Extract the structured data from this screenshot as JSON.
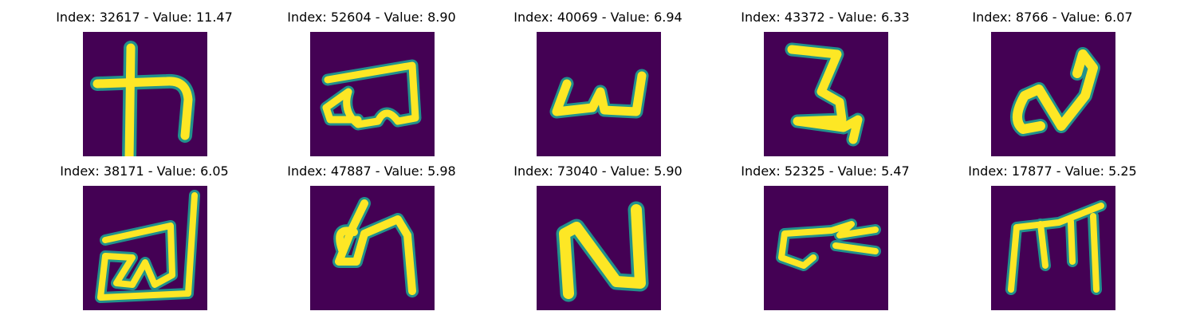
{
  "colors": {
    "background": "#440154",
    "mid": "#21918c",
    "stroke": "#fde725"
  },
  "panels": [
    {
      "title": "Index: 32617 - Value: 11.47"
    },
    {
      "title": "Index: 52604 - Value: 8.90"
    },
    {
      "title": "Index: 40069 - Value: 6.94"
    },
    {
      "title": "Index: 43372 - Value: 6.33"
    },
    {
      "title": "Index: 8766 - Value: 6.07"
    },
    {
      "title": "Index: 38171 - Value: 6.05"
    },
    {
      "title": "Index: 47887 - Value: 5.98"
    },
    {
      "title": "Index: 73040 - Value: 5.90"
    },
    {
      "title": "Index: 52325 - Value: 5.47"
    },
    {
      "title": "Index: 17877 - Value: 5.25"
    }
  ]
}
